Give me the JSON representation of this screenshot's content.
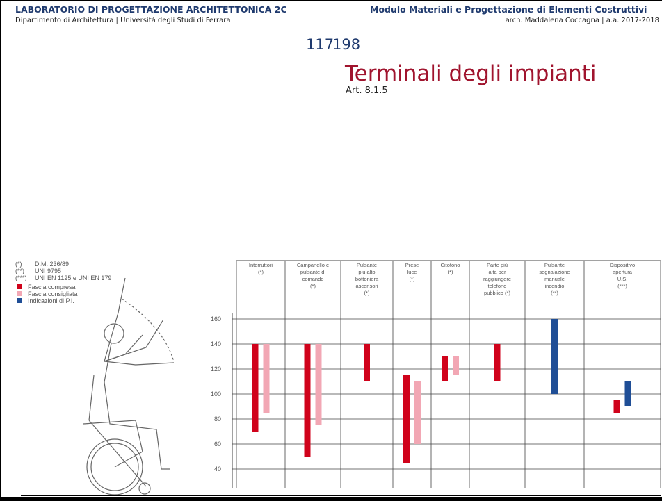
{
  "header": {
    "left_title": "LABORATORIO DI PROGETTAZIONE ARCHITETTONICA 2C",
    "left_subtitle": "Dipartimento di Architettura | Università degli Studi di Ferrara",
    "right_title": "Modulo Materiali e Progettazione di Elementi Costruttivi",
    "right_subtitle": "arch. Maddalena Coccagna | a.a. 2017-2018",
    "page_numbers": [
      "117",
      "198"
    ]
  },
  "slide": {
    "title": "Terminali degli impianti",
    "subtitle": "Art. 8.1.5"
  },
  "chart_data": {
    "type": "bar",
    "notes": [
      [
        "(*)",
        "D.M. 236/89"
      ],
      [
        "(**)",
        "UNI 9795"
      ],
      [
        "(***)",
        "UNI EN 1125 e UNI EN 179"
      ]
    ],
    "categories": [
      [
        "Interruttori",
        "(*)"
      ],
      [
        "Campanello e",
        "pulsante di",
        "comando",
        "(*)"
      ],
      [
        "Pulsante",
        "più alto",
        "bottoniera",
        "ascensori",
        "(*)"
      ],
      [
        "Prese",
        "luce",
        "(*)"
      ],
      [
        "Citofono",
        "(*)"
      ],
      [
        "Parte più",
        "alta per",
        "raggiungere",
        "telefono",
        "pubblico (*)"
      ],
      [
        "Pulsante",
        "segnalazione",
        "manuale",
        "incendio",
        "(**)"
      ],
      [
        "Dispositivo",
        "apertura",
        "U.S.",
        "(***)"
      ]
    ],
    "series": [
      {
        "name": "Fascia compresa",
        "color": "#d0021b",
        "values": [
          [
            70,
            140
          ],
          [
            50,
            140
          ],
          [
            110,
            140
          ],
          [
            45,
            115
          ],
          [
            110,
            130
          ],
          [
            110,
            140
          ],
          null,
          [
            85,
            95
          ]
        ]
      },
      {
        "name": "Fascia consigliata",
        "color": "#f2a7b4",
        "values": [
          [
            85,
            140
          ],
          [
            75,
            140
          ],
          null,
          [
            60,
            110
          ],
          [
            115,
            130
          ],
          null,
          null,
          null
        ]
      },
      {
        "name": "Indicazioni di P.I.",
        "color": "#1f4e96",
        "values": [
          null,
          null,
          null,
          null,
          null,
          null,
          [
            100,
            160
          ],
          [
            90,
            110
          ]
        ]
      }
    ],
    "ylim": [
      30,
      165
    ],
    "yticks": [
      40,
      60,
      80,
      100,
      120,
      140,
      160
    ],
    "grid": true
  }
}
